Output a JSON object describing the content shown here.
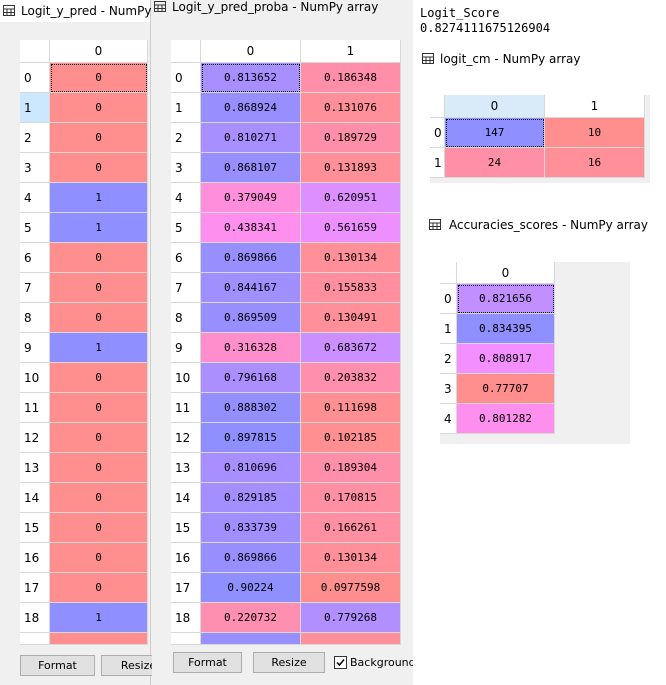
{
  "logit_y_pred": {
    "title": "Logit_y_pred - NumPy a",
    "columns": [
      0
    ],
    "index": [
      0,
      1,
      2,
      3,
      4,
      5,
      6,
      7,
      8,
      9,
      10,
      11,
      12,
      13,
      14,
      15,
      16,
      17,
      18
    ],
    "data": [
      [
        0
      ],
      [
        0
      ],
      [
        0
      ],
      [
        0
      ],
      [
        1
      ],
      [
        1
      ],
      [
        0
      ],
      [
        0
      ],
      [
        0
      ],
      [
        1
      ],
      [
        0
      ],
      [
        0
      ],
      [
        0
      ],
      [
        0
      ],
      [
        0
      ],
      [
        0
      ],
      [
        0
      ],
      [
        0
      ],
      [
        1
      ]
    ],
    "buttons": [
      "Format",
      "Resize"
    ]
  },
  "logit_y_pred_proba": {
    "title": "Logit_y_pred_proba - NumPy array",
    "columns": [
      0,
      1
    ],
    "index": [
      0,
      1,
      2,
      3,
      4,
      5,
      6,
      7,
      8,
      9,
      10,
      11,
      12,
      13,
      14,
      15,
      16,
      17,
      18
    ],
    "data": [
      [
        0.813652,
        0.186348
      ],
      [
        0.868924,
        0.131076
      ],
      [
        0.810271,
        0.189729
      ],
      [
        0.868107,
        0.131893
      ],
      [
        0.379049,
        0.620951
      ],
      [
        0.438341,
        0.561659
      ],
      [
        0.869866,
        0.130134
      ],
      [
        0.844167,
        0.155833
      ],
      [
        0.869509,
        0.130491
      ],
      [
        0.316328,
        0.683672
      ],
      [
        0.796168,
        0.203832
      ],
      [
        0.888302,
        0.111698
      ],
      [
        0.897815,
        0.102185
      ],
      [
        0.810696,
        0.189304
      ],
      [
        0.829185,
        0.170815
      ],
      [
        0.833739,
        0.166261
      ],
      [
        0.869866,
        0.130134
      ],
      [
        0.90224,
        0.0977598
      ],
      [
        0.220732,
        0.779268
      ]
    ],
    "buttons": [
      "Format",
      "Resize"
    ],
    "checkbox": "Background c"
  },
  "logit_score": {
    "name": "Logit_Score",
    "value": 0.8274111675126904
  },
  "logit_cm": {
    "title": "logit_cm - NumPy array",
    "columns": [
      0,
      1
    ],
    "index": [
      0,
      1
    ],
    "data": [
      [
        147,
        10
      ],
      [
        24,
        16
      ]
    ]
  },
  "accuracies_scores": {
    "title": "Accuracies_scores - NumPy array",
    "columns": [
      0
    ],
    "index": [
      0,
      1,
      2,
      3,
      4
    ],
    "data": [
      [
        0.821656
      ],
      [
        0.834395
      ],
      [
        0.808917
      ],
      [
        0.77707
      ],
      [
        0.801282
      ]
    ]
  }
}
